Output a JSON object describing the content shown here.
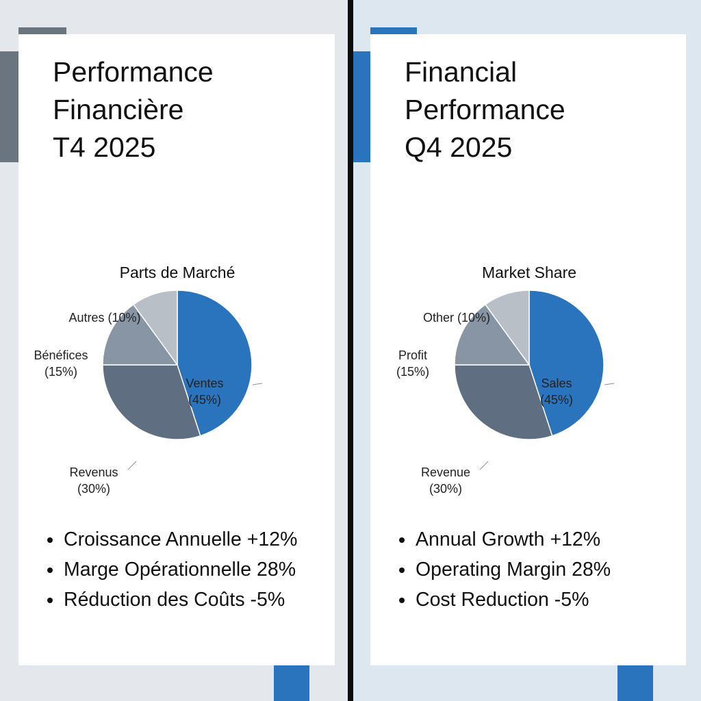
{
  "colors": {
    "series": [
      "#2a73bd",
      "#5f6e80",
      "#8795a5",
      "#b9bfc7"
    ],
    "label_text": "#222222",
    "leader": "#8a8f96"
  },
  "panels": [
    {
      "language": "fr",
      "title_lines": [
        "Performance",
        "Financière",
        "T4 2025"
      ],
      "bullets": [
        "Croissance Annuelle +12%",
        "Marge Opérationnelle 28%",
        "Réduction des Coûts -5%"
      ]
    },
    {
      "language": "en",
      "title_lines": [
        "Financial",
        "Performance",
        "Q4 2025"
      ],
      "bullets": [
        "Annual Growth +12%",
        "Operating Margin 28%",
        "Cost Reduction -5%"
      ]
    }
  ],
  "chart_data": [
    {
      "type": "pie",
      "title": "Parts de Marché",
      "categories": [
        "Ventes",
        "Revenus",
        "Bénéfices",
        "Autres"
      ],
      "values": [
        45,
        30,
        15,
        10
      ],
      "labels": [
        [
          "Ventes",
          "(45%)"
        ],
        [
          "Revenus",
          "(30%)"
        ],
        [
          "Bénéfices",
          "(15%)"
        ],
        [
          "Autres (10%)"
        ]
      ]
    },
    {
      "type": "pie",
      "title": "Market Share",
      "categories": [
        "Sales",
        "Revenue",
        "Profit",
        "Other"
      ],
      "values": [
        45,
        30,
        15,
        10
      ],
      "labels": [
        [
          "Sales",
          "(45%)"
        ],
        [
          "Revenue",
          "(30%)"
        ],
        [
          "Profit",
          "(15%)"
        ],
        [
          "Other (10%)"
        ]
      ]
    }
  ]
}
